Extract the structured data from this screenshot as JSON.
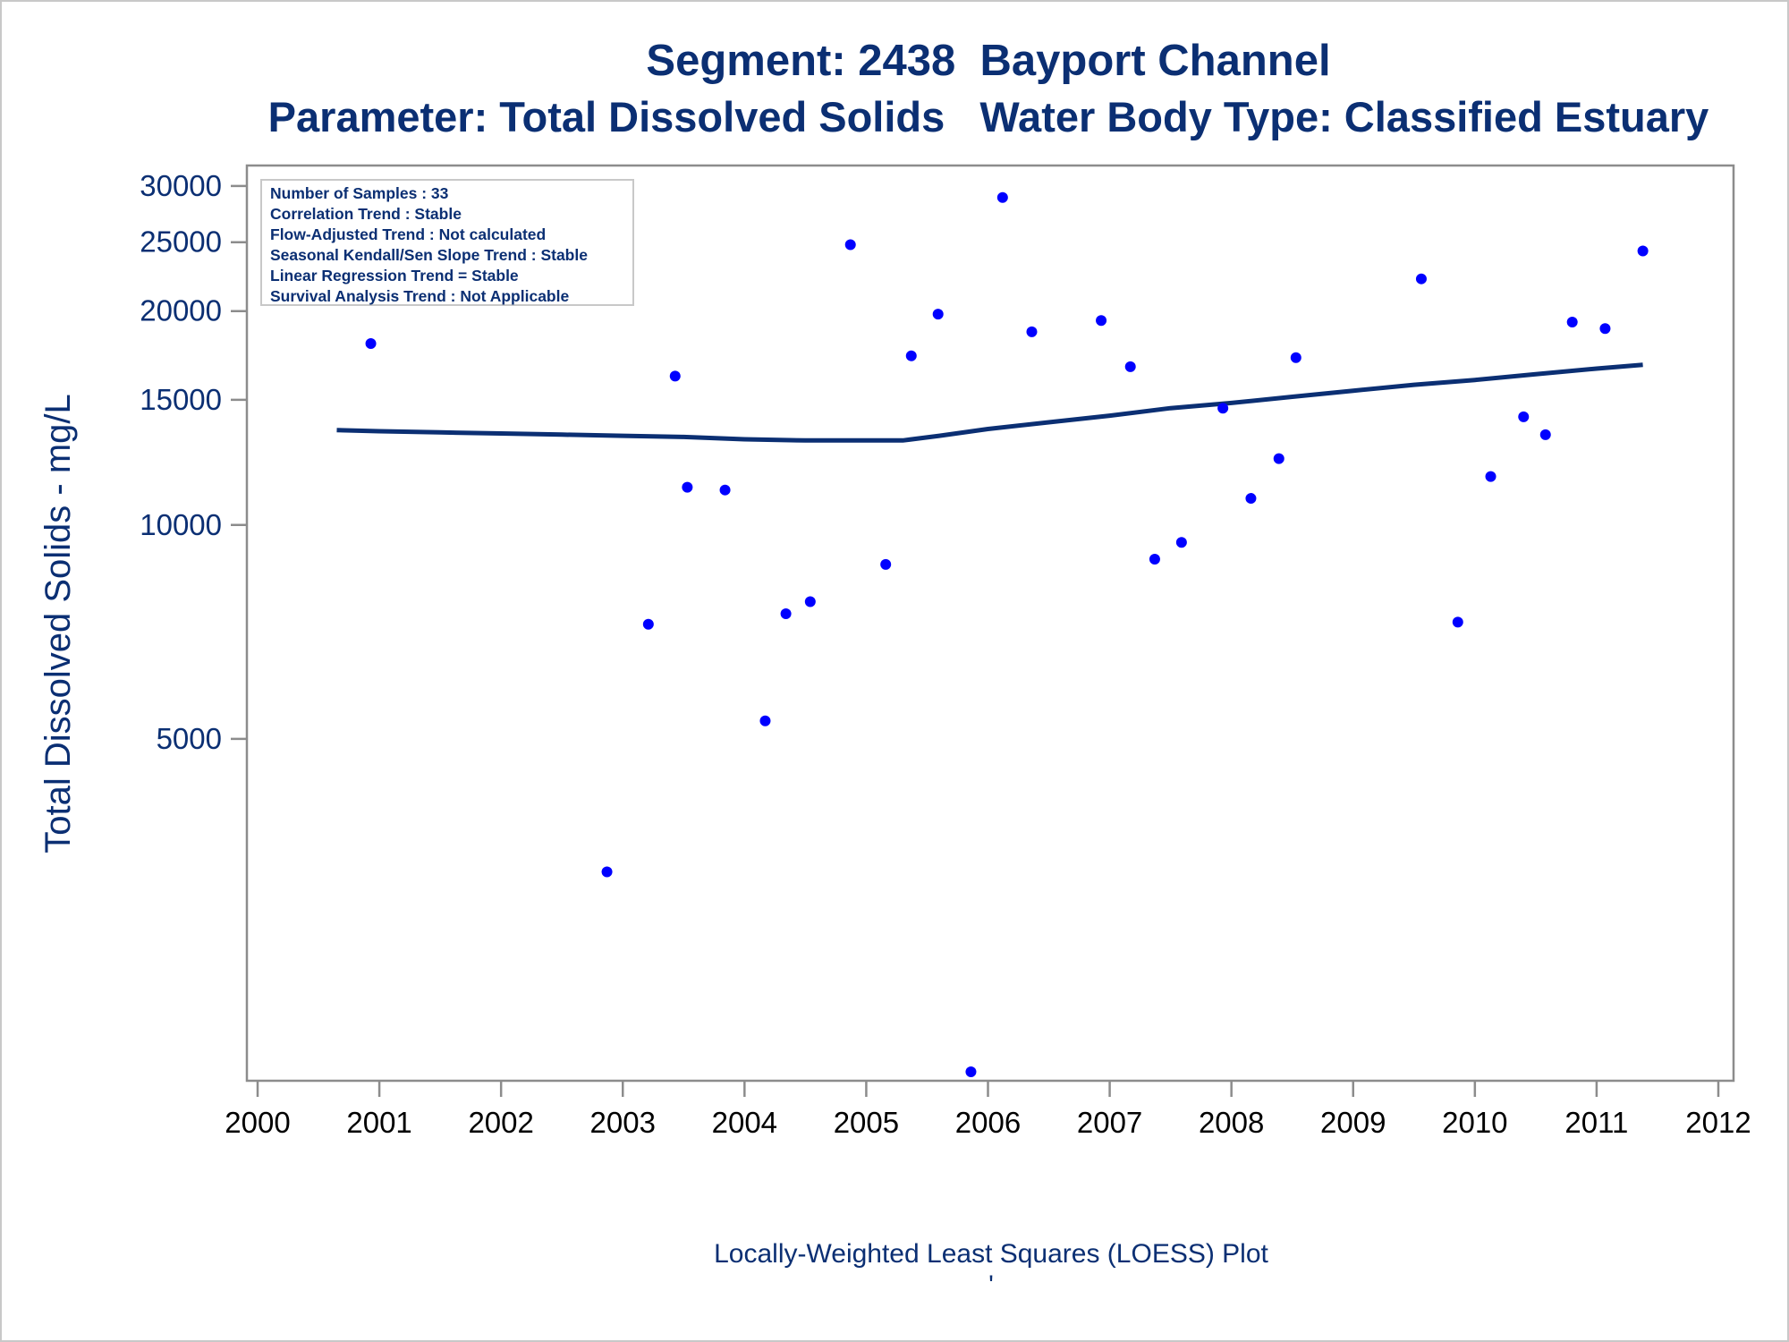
{
  "chart_data": {
    "type": "scatter",
    "title": "Segment: 2438  Bayport Channel",
    "subtitle": "Parameter: Total Dissolved Solids   Water Body Type: Classified Estuary",
    "xlabel": "",
    "ylabel": "Total Dissolved Solids - mg/L",
    "footnote": "Locally-Weighted Least Squares (LOESS) Plot",
    "footnote_mark": "'",
    "y_scale": "log",
    "xlim": [
      2000,
      2012
    ],
    "ylim": [
      1700,
      30600
    ],
    "x_ticks": [
      2000,
      2001,
      2002,
      2003,
      2004,
      2005,
      2006,
      2007,
      2008,
      2009,
      2010,
      2011,
      2012
    ],
    "x_tick_labels": [
      "2000",
      "2001",
      "2002",
      "2003",
      "2004",
      "2005",
      "2006",
      "2007",
      "2008",
      "2009",
      "2010",
      "2011",
      "2012"
    ],
    "y_ticks": [
      5000,
      10000,
      15000,
      20000,
      25000,
      30000
    ],
    "y_tick_labels": [
      "5000",
      "10000",
      "15000",
      "20000",
      "25000",
      "30000"
    ],
    "grid": false,
    "legend_box": {
      "placement": "top-left",
      "lines": [
        "Number of Samples : 33",
        "Correlation Trend : Stable",
        "Flow-Adjusted Trend : Not calculated",
        "Seasonal Kendall/Sen Slope Trend : Stable",
        "Linear Regression Trend = Stable",
        "Survival Analysis Trend : Not Applicable"
      ]
    },
    "series": [
      {
        "kind": "points",
        "color": "#0000ff",
        "x": [
          2000.65,
          2000.93,
          2002.87,
          2003.21,
          2003.43,
          2003.53,
          2003.84,
          2004.17,
          2004.34,
          2004.54,
          2004.87,
          2005.16,
          2005.37,
          2005.59,
          2005.86,
          2006.12,
          2006.36,
          2006.93,
          2007.17,
          2007.37,
          2007.59,
          2007.93,
          2008.16,
          2008.39,
          2008.53,
          2009.56,
          2009.86,
          2010.13,
          2010.4,
          2010.58,
          2010.8,
          2011.07,
          2011.38
        ],
        "y": [
          22200,
          18000,
          3250,
          7250,
          16200,
          11300,
          11200,
          5300,
          7500,
          7800,
          24800,
          8800,
          17300,
          19800,
          1700,
          28900,
          18700,
          19400,
          16700,
          8950,
          9450,
          14600,
          10900,
          12400,
          17200,
          22200,
          7300,
          11700,
          14200,
          13400,
          19300,
          18900,
          24300
        ]
      },
      {
        "kind": "line",
        "color": "#0b2f73",
        "x": [
          2000.65,
          2001.0,
          2001.5,
          2002.0,
          2002.5,
          2003.0,
          2003.5,
          2004.0,
          2004.5,
          2005.0,
          2005.3,
          2005.6,
          2006.0,
          2006.5,
          2007.0,
          2007.5,
          2008.0,
          2008.5,
          2009.0,
          2009.5,
          2010.0,
          2010.5,
          2011.0,
          2011.38
        ],
        "y": [
          13600,
          13550,
          13500,
          13450,
          13400,
          13350,
          13300,
          13200,
          13150,
          13150,
          13150,
          13350,
          13650,
          13950,
          14250,
          14600,
          14850,
          15150,
          15450,
          15750,
          16000,
          16300,
          16600,
          16800
        ]
      }
    ]
  }
}
